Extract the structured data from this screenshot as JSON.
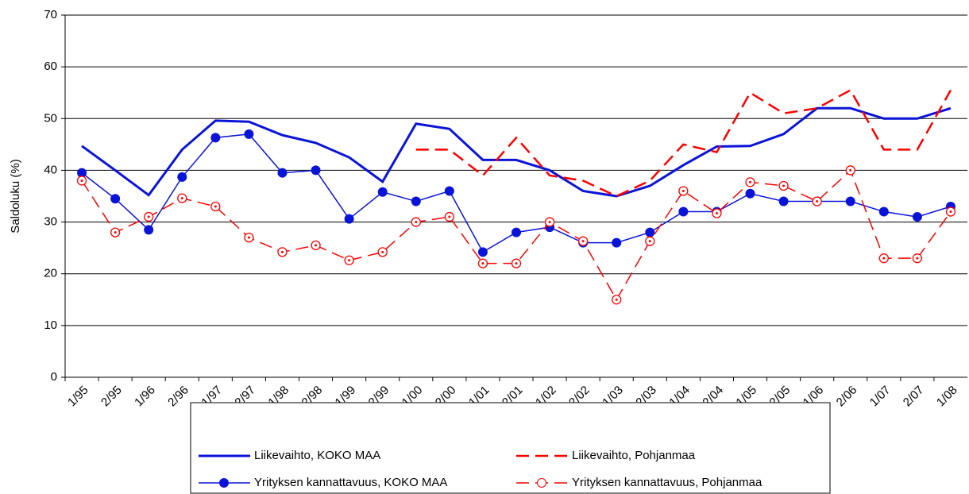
{
  "chart_data": {
    "type": "line",
    "y_label": "Saldoluku (%)",
    "categories": [
      "1/95",
      "2/95",
      "1/96",
      "2/96",
      "1/97",
      "2/97",
      "1/98",
      "2/98",
      "1/99",
      "2/99",
      "1/00",
      "2/00",
      "1/01",
      "2/01",
      "1/02",
      "2/02",
      "1/03",
      "2/03",
      "1/04",
      "2/04",
      "1/05",
      "2/05",
      "1/06",
      "2/06",
      "1/07",
      "2/07",
      "1/08"
    ],
    "ylim": [
      0,
      70
    ],
    "yticks": [
      0,
      10,
      20,
      30,
      40,
      50,
      60,
      70
    ],
    "grid": true,
    "legend": "bottom",
    "series": [
      {
        "name": "Liikevaihto, KOKO MAA",
        "color": "#0a14d8",
        "dash": false,
        "marker": "none",
        "width": 3,
        "values": [
          44.7,
          40,
          35.2,
          44,
          49.6,
          49.4,
          46.8,
          45.3,
          42.5,
          37.8,
          49,
          48,
          42,
          42,
          40,
          36,
          35,
          37,
          41,
          44.6,
          44.7,
          47,
          52,
          52,
          50,
          50,
          52
        ]
      },
      {
        "name": "Liikevaihto, Pohjanmaa",
        "color": "#ff0000",
        "dash": true,
        "marker": "none",
        "width": 2.5,
        "values": [
          null,
          null,
          null,
          null,
          null,
          null,
          null,
          null,
          null,
          null,
          44,
          44,
          39,
          46.3,
          39,
          38,
          35,
          38,
          45,
          43.5,
          55,
          51,
          52,
          55.5,
          44,
          44,
          55.5
        ]
      },
      {
        "name": "Yrityksen kannattavuus, KOKO MAA",
        "color": "#0a14d8",
        "dash": false,
        "marker": "filled",
        "width": 1.5,
        "values": [
          39.5,
          34.5,
          28.5,
          38.7,
          46.3,
          47,
          39.5,
          40,
          30.6,
          35.8,
          34,
          36,
          24.2,
          28,
          29,
          26,
          26,
          28,
          32,
          32,
          35.5,
          34,
          34,
          34,
          32,
          31,
          33
        ]
      },
      {
        "name": "Yrityksen kannattavuus, Pohjanmaa",
        "color": "#ff0000",
        "dash": true,
        "marker": "open",
        "width": 1.5,
        "values": [
          38,
          28,
          31,
          34.6,
          33,
          27,
          24.2,
          25.5,
          22.6,
          24.2,
          30,
          31,
          22,
          22,
          30,
          26.3,
          15,
          26.3,
          36,
          31.7,
          37.7,
          37,
          34,
          40,
          23,
          23,
          32
        ]
      }
    ]
  }
}
